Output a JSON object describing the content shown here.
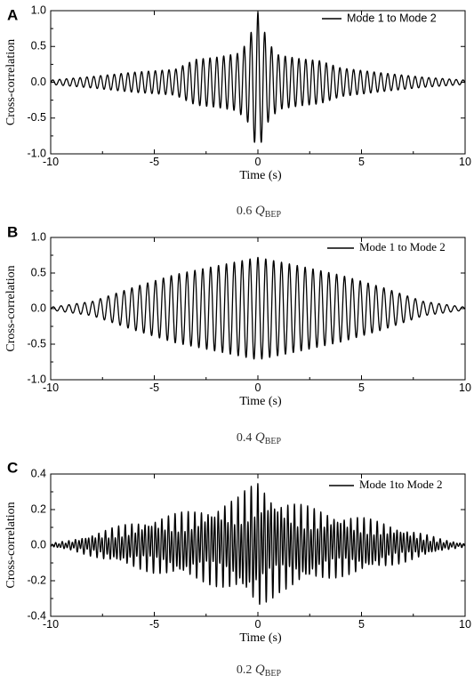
{
  "panels": [
    {
      "letter": "A",
      "caption_prefix": "0.6 ",
      "caption_q": "Q",
      "caption_sub": "BEP",
      "chart_data": {
        "type": "line",
        "xlabel": "Time (s)",
        "ylabel": "Cross-correlation",
        "xlim": [
          -10,
          10
        ],
        "ylim": [
          -1.0,
          1.0
        ],
        "xticks": [
          "-10",
          "-5",
          "0",
          "5",
          "10"
        ],
        "yticks": [
          "-1.0",
          "-0.5",
          "0.0",
          "0.5",
          "1.0"
        ],
        "legend_placement": "top-right",
        "series": [
          {
            "name": "Mode 1 to Mode 2",
            "period_s": 0.33,
            "envelope_t": [
              -10,
              -8,
              -6,
              -4,
              -3,
              -2,
              -1,
              -0.5,
              0,
              0.5,
              1,
              2,
              3,
              4,
              6,
              8,
              10
            ],
            "envelope_amp": [
              0.03,
              0.08,
              0.14,
              0.18,
              0.32,
              0.35,
              0.4,
              0.55,
              0.98,
              0.55,
              0.38,
              0.33,
              0.3,
              0.2,
              0.13,
              0.07,
              0.03
            ]
          }
        ]
      }
    },
    {
      "letter": "B",
      "caption_prefix": "0.4 ",
      "caption_q": "Q",
      "caption_sub": "BEP",
      "chart_data": {
        "type": "line",
        "xlabel": "Time (s)",
        "ylabel": "Cross-correlation",
        "xlim": [
          -10,
          10
        ],
        "ylim": [
          -1.0,
          1.0
        ],
        "xticks": [
          "-10",
          "-5",
          "0",
          "5",
          "10"
        ],
        "yticks": [
          "-1.0",
          "-0.5",
          "0.0",
          "0.5",
          "1.0"
        ],
        "legend_placement": "top-right",
        "series": [
          {
            "name": "Mode 1 to Mode 2",
            "period_s": 0.38,
            "envelope_t": [
              -10,
              -8,
              -6,
              -4,
              -2,
              0,
              2,
              4,
              6,
              8,
              10
            ],
            "envelope_amp": [
              0.02,
              0.1,
              0.3,
              0.48,
              0.6,
              0.72,
              0.6,
              0.47,
              0.3,
              0.1,
              0.02
            ]
          }
        ]
      }
    },
    {
      "letter": "C",
      "caption_prefix": "0.2 ",
      "caption_q": "Q",
      "caption_sub": "BEP",
      "chart_data": {
        "type": "line",
        "xlabel": "Time (s)",
        "ylabel": "Cross-correlation",
        "xlim": [
          -10,
          10
        ],
        "ylim": [
          -0.4,
          0.4
        ],
        "xticks": [
          "-10",
          "-5",
          "0",
          "5",
          "10"
        ],
        "yticks": [
          "-0.4",
          "-0.2",
          "0.0",
          "0.2",
          "0.4"
        ],
        "legend_placement": "top-right",
        "series": [
          {
            "name": "Mode 1to Mode 2",
            "period_s": 0.16,
            "envelope_t": [
              -10,
              -9,
              -7,
              -5,
              -3,
              -1,
              0,
              1,
              3,
              5,
              7,
              9,
              10
            ],
            "envelope_amp": [
              0.01,
              0.03,
              0.1,
              0.16,
              0.2,
              0.27,
              0.37,
              0.27,
              0.2,
              0.16,
              0.1,
              0.03,
              0.01
            ]
          }
        ]
      }
    }
  ]
}
